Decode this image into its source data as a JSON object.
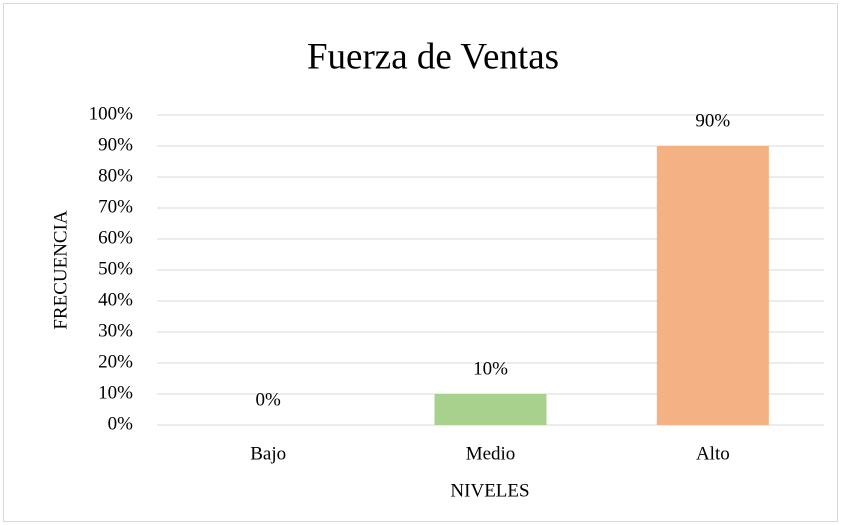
{
  "chart_data": {
    "type": "bar",
    "title": "Fuerza de Ventas",
    "x_label": "NIVELES",
    "y_label": "FRECUENCIA",
    "categories": [
      "Bajo",
      "Medio",
      "Alto"
    ],
    "values": [
      0,
      10,
      90
    ],
    "value_labels": [
      "0%",
      "10%",
      "90%"
    ],
    "colors": [
      "#9dc3e6",
      "#a9d18e",
      "#f4b183"
    ],
    "ylim": [
      0,
      100
    ],
    "yticks": [
      {
        "value": 0,
        "label": "0%"
      },
      {
        "value": 10,
        "label": "10%"
      },
      {
        "value": 20,
        "label": "20%"
      },
      {
        "value": 30,
        "label": "30%"
      },
      {
        "value": 40,
        "label": "40%"
      },
      {
        "value": 50,
        "label": "50%"
      },
      {
        "value": 60,
        "label": "60%"
      },
      {
        "value": 70,
        "label": "70%"
      },
      {
        "value": 80,
        "label": "80%"
      },
      {
        "value": 90,
        "label": "90%"
      },
      {
        "value": 100,
        "label": "100%"
      }
    ],
    "grid": true
  }
}
